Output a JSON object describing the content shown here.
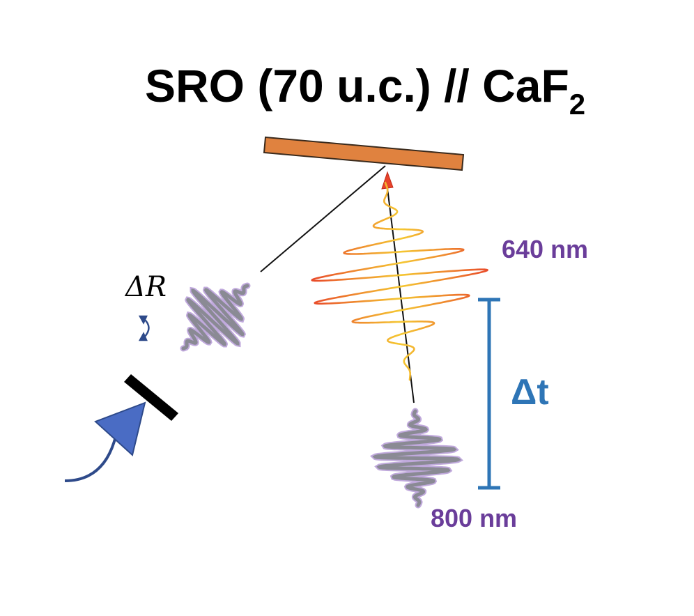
{
  "title": {
    "main": "SRO (70 u.c.) // CaF",
    "subscript": "2"
  },
  "labels": {
    "probe_wavelength": "640 nm",
    "pump_wavelength": "800 nm",
    "delay": "Δt",
    "reflectivity_change": "ΔR"
  },
  "colors": {
    "sample": "#e0823f",
    "sample_edge": "#3a2a1c",
    "probe_pulse_outer": "#e8432a",
    "probe_pulse_center": "#f5c832",
    "pump_pulse": "#8a8a94",
    "pump_pulse_accent": "#b59ad6",
    "wavelength_label": "#6a3d9a",
    "delay_bar": "#2e75b6",
    "detector_arrow": "#4a6cc4",
    "beam_line": "#111111",
    "title": "#000000"
  },
  "icons": {
    "detector": "detector-arrow-icon",
    "mirror": "mirror-icon",
    "rotate": "rotate-arrows-icon"
  }
}
